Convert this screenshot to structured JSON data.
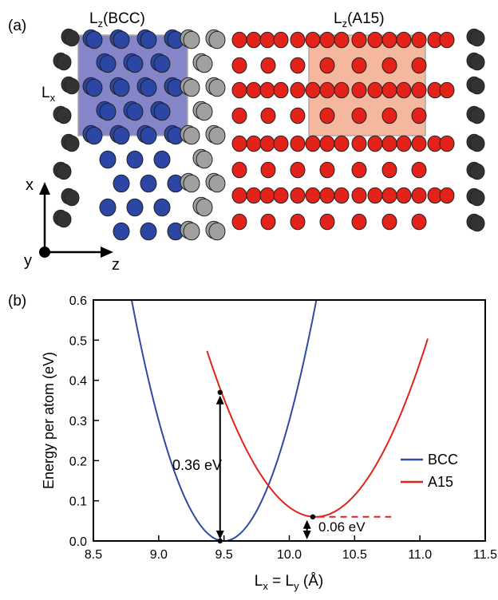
{
  "panel_a": {
    "label": "(a)",
    "box_bcc_label": "L",
    "box_bcc_sub": "z",
    "box_bcc_tail": "(BCC)",
    "box_a15_label": "L",
    "box_a15_sub": "z",
    "box_a15_tail": "(A15)",
    "lx_label": "L",
    "lx_sub": "x",
    "axis_x": "x",
    "axis_y": "y",
    "axis_z": "z",
    "colors": {
      "bcc_atom": "#2b46a4",
      "a15_atom": "#e32219",
      "interface_atom": "#a0a0a0",
      "outer_atom": "#333333",
      "bcc_box": "#5c5cb8",
      "a15_box": "#f2a07f"
    }
  },
  "panel_b": {
    "label": "(b)",
    "annotation_bcc_a15": "0.36 eV",
    "annotation_min_diff": "0.06 eV",
    "xlabel_main": "L",
    "xlabel_sub_x": "x",
    "xlabel_eq": " = L",
    "xlabel_sub_y": "y",
    "xlabel_unit": " (Å)",
    "chart_data": {
      "type": "line",
      "xlabel": "Lx = Ly (Å)",
      "ylabel": "Energy per atom (eV)",
      "xlim": [
        8.5,
        11.5
      ],
      "ylim": [
        0,
        0.6
      ],
      "x_ticks": [
        "8.5",
        "9.0",
        "9.5",
        "10.0",
        "10.5",
        "11.0",
        "11.5"
      ],
      "y_ticks": [
        "0.0",
        "0.1",
        "0.2",
        "0.3",
        "0.4",
        "0.5",
        "0.6"
      ],
      "legend_position": "right",
      "series": [
        {
          "name": "BCC",
          "color": "#2f4aa3",
          "x0": 9.5,
          "y0": 0.0,
          "curvature": 1.2,
          "x_range": [
            8.55,
            10.45
          ]
        },
        {
          "name": "A15",
          "color": "#e32219",
          "x0": 10.2,
          "y0": 0.06,
          "curvature": 0.6,
          "x_range": [
            9.37,
            11.06
          ]
        }
      ],
      "markers": [
        {
          "x": 9.47,
          "y": 0.37
        },
        {
          "x": 9.47,
          "y": 0.0
        },
        {
          "x": 10.18,
          "y": 0.06
        }
      ]
    }
  }
}
